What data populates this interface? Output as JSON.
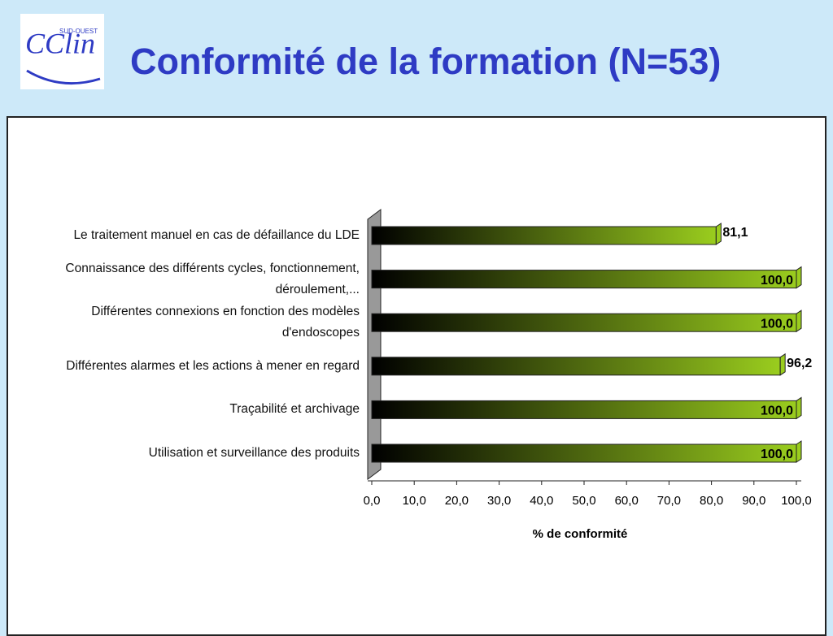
{
  "logo": {
    "text": "CClin",
    "subtext": "SUD-OUEST"
  },
  "chart_data": {
    "type": "bar",
    "orientation": "horizontal",
    "title": "Conformité de la formation (N=53)",
    "xlabel": "% de conformité",
    "categories": [
      "Le traitement manuel en cas de défaillance du LDE",
      "Connaissance des différents cycles, fonctionnement, déroulement,...",
      "Différentes connexions en fonction des modèles d'endoscopes",
      "Différentes alarmes et les actions à mener en regard",
      "Traçabilité et archivage",
      "Utilisation et surveillance des produits"
    ],
    "values": [
      81.1,
      100,
      100,
      96.2,
      100,
      100
    ],
    "value_labels": [
      "81,1",
      "100,0",
      "100,0",
      "96,2",
      "100,0",
      "100,0"
    ],
    "color": "#9acd1e",
    "xlim": [
      0,
      100
    ],
    "xticks": [
      {
        "value": 0,
        "label": "0,0"
      },
      {
        "value": 10,
        "label": "10,0"
      },
      {
        "value": 20,
        "label": "20,0"
      },
      {
        "value": 30,
        "label": "30,0"
      },
      {
        "value": 40,
        "label": "40,0"
      },
      {
        "value": 50,
        "label": "50,0"
      },
      {
        "value": 60,
        "label": "60,0"
      },
      {
        "value": 70,
        "label": "70,0"
      },
      {
        "value": 80,
        "label": "80,0"
      },
      {
        "value": 90,
        "label": "90,0"
      },
      {
        "value": 100,
        "label": "100,0"
      }
    ]
  }
}
